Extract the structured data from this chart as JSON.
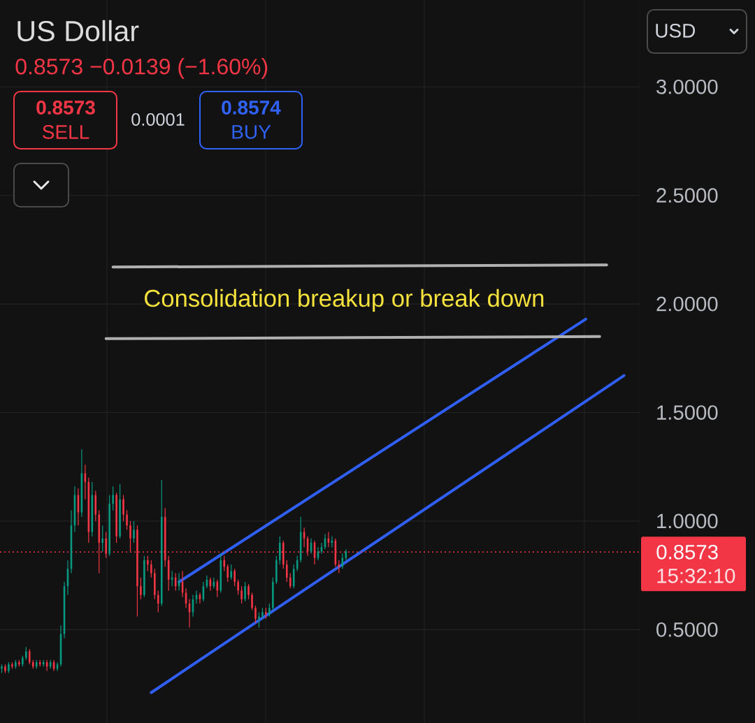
{
  "chart_data": {
    "type": "candlestick",
    "title": "US Dollar",
    "subtitle": "0.8573  −0.0139 (−1.60%)",
    "categories": [
      null,
      null,
      null,
      null,
      null,
      null,
      null,
      null,
      null,
      null,
      null,
      null,
      null,
      null,
      null,
      null,
      null,
      null,
      null,
      null,
      null,
      null,
      null,
      null,
      null,
      null,
      null,
      null,
      null,
      null,
      null,
      null,
      null,
      null,
      null,
      null,
      null,
      null,
      null,
      null,
      null,
      null,
      null,
      null,
      null,
      null,
      null,
      null,
      null,
      null,
      null,
      null,
      null,
      null,
      null,
      null,
      null,
      null,
      null,
      null,
      null,
      null,
      null,
      null,
      null,
      null,
      null,
      null,
      null,
      null,
      null,
      null,
      null,
      null,
      null,
      null,
      null,
      null,
      null,
      null,
      null,
      null,
      null,
      null,
      null,
      null,
      null,
      null,
      null,
      null,
      null,
      null,
      null,
      null,
      null,
      null,
      null,
      null,
      null,
      null,
      null,
      null,
      null,
      null,
      null,
      null,
      null,
      null,
      null,
      null,
      null,
      null,
      null,
      null,
      null,
      null,
      null,
      null,
      null,
      null,
      null,
      null,
      null,
      null,
      null,
      null,
      null,
      null,
      null,
      null,
      null,
      null,
      null,
      null,
      null,
      null,
      null,
      null,
      null,
      null,
      null,
      null,
      null,
      null,
      null,
      null,
      null,
      null,
      null,
      null,
      null,
      null,
      null,
      null,
      null,
      null,
      null,
      null,
      null,
      null,
      null,
      null,
      null,
      null,
      null,
      null,
      null,
      null,
      null,
      null,
      null,
      null,
      null,
      null,
      null,
      null,
      null,
      null,
      null,
      null,
      null,
      null,
      null,
      null
    ],
    "ohlc": [
      [
        0.32,
        0.34,
        0.3,
        0.33
      ],
      [
        0.33,
        0.34,
        0.3,
        0.31
      ],
      [
        0.31,
        0.35,
        0.3,
        0.34
      ],
      [
        0.34,
        0.35,
        0.32,
        0.33
      ],
      [
        0.33,
        0.36,
        0.32,
        0.35
      ],
      [
        0.35,
        0.36,
        0.33,
        0.34
      ],
      [
        0.34,
        0.38,
        0.33,
        0.37
      ],
      [
        0.37,
        0.42,
        0.36,
        0.4
      ],
      [
        0.4,
        0.41,
        0.34,
        0.35
      ],
      [
        0.35,
        0.36,
        0.32,
        0.33
      ],
      [
        0.33,
        0.36,
        0.32,
        0.35
      ],
      [
        0.35,
        0.36,
        0.33,
        0.34
      ],
      [
        0.34,
        0.36,
        0.33,
        0.35
      ],
      [
        0.35,
        0.36,
        0.31,
        0.33
      ],
      [
        0.33,
        0.36,
        0.32,
        0.35
      ],
      [
        0.35,
        0.36,
        0.31,
        0.32
      ],
      [
        0.32,
        0.35,
        0.31,
        0.34
      ],
      [
        0.34,
        0.52,
        0.33,
        0.48
      ],
      [
        0.48,
        0.72,
        0.46,
        0.7
      ],
      [
        0.7,
        0.82,
        0.66,
        0.78
      ],
      [
        0.78,
        1.05,
        0.76,
        0.98
      ],
      [
        0.98,
        1.16,
        0.95,
        1.12
      ],
      [
        1.12,
        1.15,
        0.98,
        1.04
      ],
      [
        1.04,
        1.33,
        1.02,
        1.22
      ],
      [
        1.22,
        1.26,
        1.1,
        1.18
      ],
      [
        1.18,
        1.2,
        0.9,
        0.95
      ],
      [
        0.95,
        1.18,
        0.93,
        1.12
      ],
      [
        1.12,
        1.14,
        1.0,
        1.03
      ],
      [
        1.03,
        1.05,
        0.76,
        0.9
      ],
      [
        0.9,
        0.98,
        0.86,
        0.92
      ],
      [
        0.92,
        0.95,
        0.83,
        0.85
      ],
      [
        0.85,
        1.12,
        0.84,
        1.08
      ],
      [
        1.08,
        1.16,
        1.05,
        1.12
      ],
      [
        1.12,
        1.13,
        0.9,
        0.93
      ],
      [
        0.93,
        1.17,
        0.92,
        1.1
      ],
      [
        1.1,
        1.12,
        1.0,
        1.03
      ],
      [
        1.03,
        1.05,
        0.96,
        0.98
      ],
      [
        0.98,
        1.0,
        0.86,
        0.92
      ],
      [
        0.92,
        1.0,
        0.9,
        0.96
      ],
      [
        0.96,
        0.98,
        0.56,
        0.7
      ],
      [
        0.7,
        0.74,
        0.64,
        0.66
      ],
      [
        0.66,
        0.84,
        0.65,
        0.82
      ],
      [
        0.82,
        0.84,
        0.77,
        0.8
      ],
      [
        0.8,
        0.82,
        0.74,
        0.76
      ],
      [
        0.76,
        0.78,
        0.64,
        0.66
      ],
      [
        0.66,
        0.68,
        0.58,
        0.62
      ],
      [
        0.62,
        1.19,
        0.61,
        1.02
      ],
      [
        1.02,
        1.06,
        0.79,
        0.82
      ],
      [
        0.82,
        0.84,
        0.68,
        0.73
      ],
      [
        0.73,
        0.77,
        0.7,
        0.74
      ],
      [
        0.74,
        0.76,
        0.68,
        0.7
      ],
      [
        0.7,
        0.76,
        0.68,
        0.72
      ],
      [
        0.72,
        0.77,
        0.65,
        0.67
      ],
      [
        0.67,
        0.69,
        0.6,
        0.62
      ],
      [
        0.62,
        0.64,
        0.51,
        0.58
      ],
      [
        0.58,
        0.66,
        0.56,
        0.64
      ],
      [
        0.64,
        0.68,
        0.62,
        0.66
      ],
      [
        0.66,
        0.67,
        0.62,
        0.64
      ],
      [
        0.64,
        0.72,
        0.63,
        0.7
      ],
      [
        0.7,
        0.75,
        0.69,
        0.73
      ],
      [
        0.73,
        0.74,
        0.68,
        0.7
      ],
      [
        0.7,
        0.74,
        0.69,
        0.72
      ],
      [
        0.72,
        0.73,
        0.65,
        0.68
      ],
      [
        0.68,
        0.85,
        0.67,
        0.82
      ],
      [
        0.82,
        0.84,
        0.77,
        0.79
      ],
      [
        0.79,
        0.8,
        0.72,
        0.74
      ],
      [
        0.74,
        0.8,
        0.73,
        0.77
      ],
      [
        0.77,
        0.78,
        0.7,
        0.72
      ],
      [
        0.72,
        0.73,
        0.66,
        0.68
      ],
      [
        0.68,
        0.7,
        0.62,
        0.64
      ],
      [
        0.64,
        0.72,
        0.63,
        0.7
      ],
      [
        0.7,
        0.71,
        0.64,
        0.66
      ],
      [
        0.66,
        0.67,
        0.59,
        0.6
      ],
      [
        0.6,
        0.61,
        0.53,
        0.55
      ],
      [
        0.55,
        0.58,
        0.51,
        0.56
      ],
      [
        0.56,
        0.6,
        0.55,
        0.58
      ],
      [
        0.58,
        0.6,
        0.55,
        0.57
      ],
      [
        0.57,
        0.62,
        0.56,
        0.6
      ],
      [
        0.6,
        0.74,
        0.59,
        0.72
      ],
      [
        0.72,
        0.84,
        0.71,
        0.82
      ],
      [
        0.82,
        0.93,
        0.8,
        0.9
      ],
      [
        0.9,
        0.91,
        0.78,
        0.8
      ],
      [
        0.8,
        0.82,
        0.72,
        0.74
      ],
      [
        0.74,
        0.76,
        0.69,
        0.7
      ],
      [
        0.7,
        0.8,
        0.69,
        0.78
      ],
      [
        0.78,
        0.84,
        0.77,
        0.82
      ],
      [
        0.82,
        1.02,
        0.81,
        0.95
      ],
      [
        0.95,
        0.97,
        0.88,
        0.92
      ],
      [
        0.92,
        0.93,
        0.84,
        0.86
      ],
      [
        0.86,
        0.92,
        0.85,
        0.9
      ],
      [
        0.9,
        0.91,
        0.8,
        0.83
      ],
      [
        0.83,
        0.88,
        0.82,
        0.86
      ],
      [
        0.86,
        0.9,
        0.85,
        0.88
      ],
      [
        0.88,
        0.94,
        0.87,
        0.92
      ],
      [
        0.92,
        0.95,
        0.88,
        0.9
      ],
      [
        0.9,
        0.93,
        0.88,
        0.91
      ],
      [
        0.91,
        0.92,
        0.79,
        0.8
      ],
      [
        0.8,
        0.82,
        0.76,
        0.79
      ],
      [
        0.79,
        0.85,
        0.78,
        0.83
      ],
      [
        0.83,
        0.87,
        0.82,
        0.86
      ],
      null,
      null,
      null,
      null,
      null,
      null,
      null,
      null,
      null,
      null,
      null,
      null,
      null,
      null,
      null,
      null,
      null,
      null,
      null,
      null,
      null,
      null,
      null,
      null,
      null,
      null,
      null,
      null,
      null,
      null,
      null,
      null,
      null,
      null,
      null,
      null,
      null,
      null,
      null,
      null,
      null,
      null,
      null,
      null,
      null,
      null,
      null,
      null,
      null,
      null,
      null,
      null,
      null,
      null,
      null,
      null,
      null,
      null,
      null,
      null,
      null,
      null,
      null,
      null,
      null,
      null,
      null,
      null,
      null,
      null,
      null,
      null,
      null,
      null,
      null,
      null,
      null,
      null,
      null,
      null,
      null,
      null,
      null,
      null
    ],
    "series": [
      {
        "type": "line",
        "color": "#2f5ff5",
        "values": [
          null,
          null,
          null,
          null,
          null,
          null,
          null,
          null,
          null,
          null,
          null,
          null,
          null,
          null,
          null,
          null,
          null,
          null,
          null,
          null,
          null,
          null,
          null,
          null,
          null,
          null,
          null,
          null,
          null,
          null,
          null,
          null,
          null,
          null,
          null,
          null,
          null,
          null,
          null,
          null,
          null,
          null,
          null,
          null,
          null,
          null,
          null,
          null,
          null,
          null,
          null,
          0.72,
          null,
          null,
          null,
          null,
          null,
          null,
          null,
          null,
          null,
          null,
          null,
          null,
          null,
          null,
          null,
          null,
          null,
          null,
          null,
          null,
          null,
          null,
          null,
          null,
          null,
          null,
          null,
          null,
          null,
          null,
          null,
          null,
          null,
          null,
          null,
          null,
          null,
          null,
          null,
          null,
          null,
          null,
          null,
          null,
          null,
          null,
          null,
          null,
          null,
          null,
          null,
          null,
          null,
          null,
          null,
          null,
          null,
          null,
          null,
          null,
          null,
          null,
          null,
          null,
          null,
          null,
          null,
          null,
          null,
          null,
          null,
          null,
          null,
          null,
          null,
          null,
          null,
          null,
          null,
          null,
          null,
          null,
          null,
          null,
          null,
          null,
          null,
          null,
          null,
          null,
          null,
          null,
          null,
          null,
          null,
          null,
          null,
          null,
          null,
          null,
          null,
          null,
          null,
          null,
          null,
          null,
          null,
          null,
          null,
          null,
          null,
          null,
          null,
          null,
          null,
          null,
          1.93,
          null,
          null,
          null,
          null,
          null,
          null,
          null,
          null,
          null,
          null,
          null,
          null,
          null,
          null,
          null
        ]
      },
      {
        "type": "line",
        "color": "#2f5ff5",
        "values": [
          null,
          null,
          null,
          null,
          null,
          null,
          null,
          null,
          null,
          null,
          null,
          null,
          null,
          null,
          null,
          null,
          null,
          null,
          null,
          null,
          null,
          null,
          null,
          null,
          null,
          null,
          null,
          null,
          null,
          null,
          null,
          null,
          null,
          null,
          null,
          null,
          null,
          null,
          null,
          null,
          null,
          null,
          null,
          0.21,
          null,
          null,
          null,
          null,
          null,
          null,
          null,
          null,
          null,
          null,
          null,
          null,
          null,
          null,
          null,
          null,
          null,
          null,
          null,
          null,
          null,
          null,
          null,
          null,
          null,
          null,
          null,
          null,
          null,
          null,
          null,
          null,
          null,
          null,
          null,
          null,
          null,
          null,
          null,
          null,
          null,
          null,
          null,
          null,
          null,
          null,
          null,
          null,
          null,
          null,
          null,
          null,
          null,
          null,
          null,
          null,
          null,
          null,
          null,
          null,
          null,
          null,
          null,
          null,
          null,
          null,
          null,
          null,
          null,
          null,
          null,
          null,
          null,
          null,
          null,
          null,
          null,
          null,
          null,
          null,
          null,
          null,
          null,
          null,
          null,
          null,
          null,
          null,
          null,
          null,
          null,
          null,
          null,
          null,
          null,
          null,
          null,
          null,
          null,
          null,
          null,
          null,
          null,
          null,
          null,
          null,
          null,
          null,
          null,
          null,
          null,
          null,
          null,
          null,
          null,
          null,
          null,
          null,
          null,
          null,
          null,
          null,
          null,
          null,
          null,
          null,
          null,
          null,
          null,
          null,
          null,
          null,
          null,
          null,
          null,
          1.67,
          null,
          null,
          null,
          null
        ]
      },
      {
        "type": "line",
        "color": "#b0b0b0",
        "values": [
          null,
          null,
          null,
          null,
          null,
          null,
          null,
          null,
          null,
          null,
          null,
          null,
          null,
          null,
          null,
          null,
          null,
          null,
          null,
          null,
          null,
          null,
          null,
          null,
          null,
          null,
          null,
          null,
          null,
          null,
          null,
          null,
          2.17,
          null,
          null,
          null,
          null,
          null,
          null,
          null,
          null,
          null,
          null,
          null,
          null,
          null,
          null,
          null,
          null,
          null,
          null,
          null,
          null,
          null,
          null,
          null,
          null,
          null,
          null,
          null,
          null,
          null,
          null,
          null,
          null,
          null,
          null,
          null,
          null,
          null,
          null,
          null,
          null,
          null,
          null,
          null,
          null,
          null,
          null,
          null,
          null,
          null,
          null,
          null,
          null,
          null,
          null,
          null,
          null,
          null,
          null,
          null,
          null,
          null,
          null,
          null,
          null,
          null,
          null,
          null,
          null,
          null,
          null,
          null,
          null,
          null,
          null,
          null,
          null,
          null,
          null,
          null,
          null,
          null,
          null,
          null,
          null,
          null,
          null,
          null,
          null,
          null,
          null,
          null,
          null,
          null,
          null,
          null,
          null,
          null,
          null,
          null,
          null,
          null,
          null,
          null,
          null,
          null,
          null,
          null,
          null,
          null,
          null,
          null,
          null,
          null,
          null,
          null,
          null,
          null,
          null,
          null,
          null,
          null,
          null,
          null,
          null,
          null,
          null,
          null,
          null,
          null,
          null,
          null,
          null,
          null,
          null,
          null,
          null,
          null,
          null,
          null,
          null,
          null,
          2.18,
          null,
          null,
          null,
          null,
          null,
          null,
          null,
          null,
          null
        ]
      },
      {
        "type": "line",
        "color": "#b0b0b0",
        "values": [
          null,
          null,
          null,
          null,
          null,
          null,
          null,
          null,
          null,
          null,
          null,
          null,
          null,
          null,
          null,
          null,
          null,
          null,
          null,
          null,
          null,
          null,
          null,
          null,
          null,
          null,
          null,
          null,
          null,
          null,
          1.84,
          null,
          null,
          null,
          null,
          null,
          null,
          null,
          null,
          null,
          null,
          null,
          null,
          null,
          null,
          null,
          null,
          null,
          null,
          null,
          null,
          null,
          null,
          null,
          null,
          null,
          null,
          null,
          null,
          null,
          null,
          null,
          null,
          null,
          null,
          null,
          null,
          null,
          null,
          null,
          null,
          null,
          null,
          null,
          null,
          null,
          null,
          null,
          null,
          null,
          null,
          null,
          null,
          null,
          null,
          null,
          null,
          null,
          null,
          null,
          null,
          null,
          null,
          null,
          null,
          null,
          null,
          null,
          null,
          null,
          null,
          null,
          null,
          null,
          null,
          null,
          null,
          null,
          null,
          null,
          null,
          null,
          null,
          null,
          null,
          null,
          null,
          null,
          null,
          null,
          null,
          null,
          null,
          null,
          null,
          null,
          null,
          null,
          null,
          null,
          null,
          null,
          null,
          null,
          null,
          null,
          null,
          null,
          null,
          null,
          null,
          null,
          null,
          null,
          null,
          null,
          null,
          null,
          null,
          null,
          null,
          null,
          null,
          null,
          null,
          null,
          null,
          null,
          null,
          null,
          null,
          null,
          null,
          null,
          null,
          null,
          null,
          null,
          null,
          null,
          null,
          null,
          1.85,
          null,
          null,
          null,
          null,
          null,
          null,
          null,
          null,
          null,
          null,
          null
        ]
      }
    ],
    "ylim": [
      0.07,
      3.4
    ],
    "yticks": [
      {
        "value": 0.5,
        "label": "0.5000"
      },
      {
        "value": 1,
        "label": "1.0000"
      },
      {
        "value": 1.5,
        "label": "1.5000"
      },
      {
        "value": 2,
        "label": "2.0000"
      },
      {
        "value": 2.5,
        "label": "2.5000"
      },
      {
        "value": 3,
        "label": "3.0000"
      }
    ],
    "tick_labels": "y",
    "grid": true,
    "ref_lines": [
      {
        "axis": "y",
        "value": 0.8573,
        "label": "0.8573",
        "color": "#f23645",
        "line_style": "dotted"
      }
    ],
    "annotations": [
      "0.8573",
      "SELL",
      "0.0001",
      "0.8574",
      "BUY",
      "USD",
      "Consolidation breakup or break down",
      "15:32:10"
    ]
  }
}
